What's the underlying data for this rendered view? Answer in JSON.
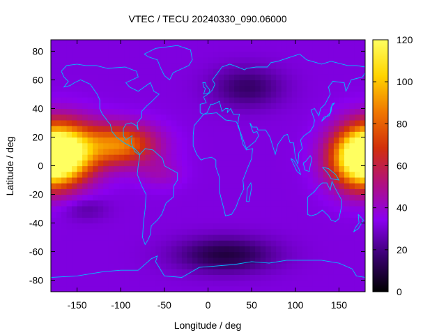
{
  "chart_data": {
    "type": "heatmap",
    "title": "VTEC / TECU 20240330_090.06000",
    "xlabel": "Longitude / deg",
    "ylabel": "Latitude / deg",
    "xlim": [
      -180,
      180
    ],
    "ylim": [
      -88,
      88
    ],
    "xticks": [
      -150,
      -100,
      -50,
      0,
      50,
      100,
      150
    ],
    "yticks": [
      -80,
      -60,
      -40,
      -20,
      0,
      20,
      40,
      60,
      80
    ],
    "colorbar": {
      "min": 0,
      "max": 120,
      "ticks": [
        0,
        20,
        40,
        60,
        80,
        100,
        120
      ]
    },
    "colormap": [
      "#000000",
      "#3a0070",
      "#8a00f0",
      "#b01080",
      "#d2300a",
      "#f07800",
      "#ffd400",
      "#ffff60"
    ],
    "coastline_color": "#00bfff",
    "grid": false,
    "features": [
      {
        "lon": -165,
        "lat": 10,
        "tec": 108,
        "width_lon": 38,
        "width_lat": 20
      },
      {
        "lon": -100,
        "lat": 15,
        "tec": 85,
        "width_lon": 40,
        "width_lat": 14
      },
      {
        "lon": 175,
        "lat": 5,
        "tec": 112,
        "width_lon": 34,
        "width_lat": 20
      },
      {
        "lon": 20,
        "lat": -62,
        "tec": 10,
        "width_lon": 55,
        "width_lat": 12
      },
      {
        "lon": 45,
        "lat": 55,
        "tec": 16,
        "width_lon": 40,
        "width_lat": 14
      }
    ]
  }
}
